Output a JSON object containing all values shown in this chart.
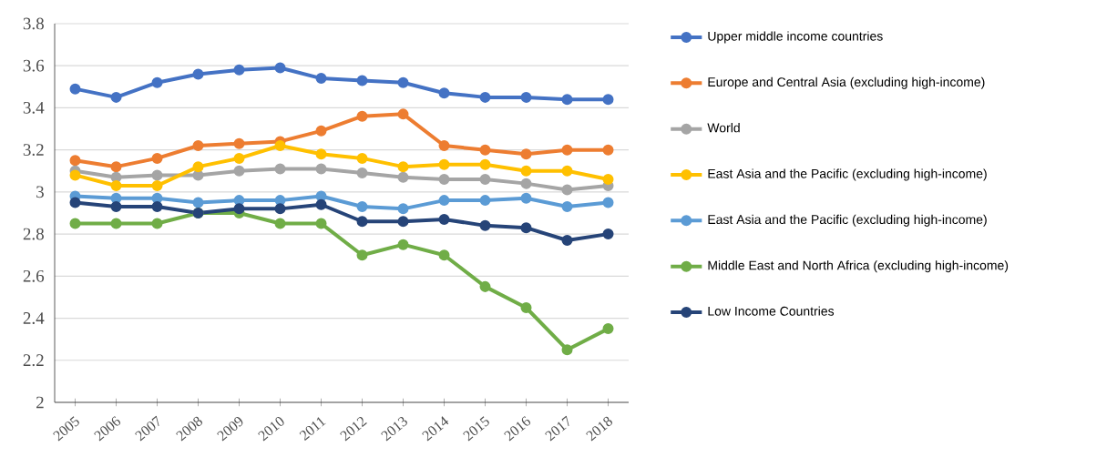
{
  "chart_data": {
    "type": "line",
    "categories": [
      "2005",
      "2006",
      "2007",
      "2008",
      "2009",
      "2010",
      "2011",
      "2012",
      "2013",
      "2014",
      "2015",
      "2016",
      "2017",
      "2018"
    ],
    "series": [
      {
        "name": "Upper middle income countries",
        "color": "#4472c4",
        "values": [
          3.49,
          3.45,
          3.52,
          3.56,
          3.58,
          3.59,
          3.54,
          3.53,
          3.52,
          3.47,
          3.45,
          3.45,
          3.44,
          3.44
        ]
      },
      {
        "name": "Europe and Central Asia (excluding high-income)",
        "color": "#ed7d31",
        "values": [
          3.15,
          3.12,
          3.16,
          3.22,
          3.23,
          3.24,
          3.29,
          3.36,
          3.37,
          3.22,
          3.2,
          3.18,
          3.2,
          3.2
        ]
      },
      {
        "name": "World",
        "color": "#a5a5a5",
        "values": [
          3.1,
          3.07,
          3.08,
          3.08,
          3.1,
          3.11,
          3.11,
          3.09,
          3.07,
          3.06,
          3.06,
          3.04,
          3.01,
          3.03
        ]
      },
      {
        "name": "East Asia and the Pacific (excluding high-income)",
        "color": "#ffc000",
        "values": [
          3.08,
          3.03,
          3.03,
          3.12,
          3.16,
          3.22,
          3.18,
          3.16,
          3.12,
          3.13,
          3.13,
          3.1,
          3.1,
          3.06
        ]
      },
      {
        "name": "East Asia and the Pacific (excluding high-income)",
        "color": "#5b9bd5",
        "values": [
          2.98,
          2.97,
          2.97,
          2.95,
          2.96,
          2.96,
          2.98,
          2.93,
          2.92,
          2.96,
          2.96,
          2.97,
          2.93,
          2.95
        ]
      },
      {
        "name": "Middle East and North Africa (excluding high-income)",
        "color": "#70ad47",
        "values": [
          2.85,
          2.85,
          2.85,
          2.9,
          2.9,
          2.85,
          2.85,
          2.7,
          2.75,
          2.7,
          2.55,
          2.45,
          2.25,
          2.35
        ]
      },
      {
        "name": "Low Income Countries",
        "color": "#264478",
        "values": [
          2.95,
          2.93,
          2.93,
          2.9,
          2.92,
          2.92,
          2.94,
          2.86,
          2.86,
          2.87,
          2.84,
          2.83,
          2.77,
          2.8
        ]
      }
    ],
    "ylim": [
      2,
      3.8
    ],
    "yticks": [
      2,
      2.2,
      2.4,
      2.6,
      2.8,
      3,
      3.2,
      3.4,
      3.6,
      3.8
    ],
    "grid": "y",
    "legend": "right",
    "marker": "circle",
    "line_style": "solid"
  }
}
